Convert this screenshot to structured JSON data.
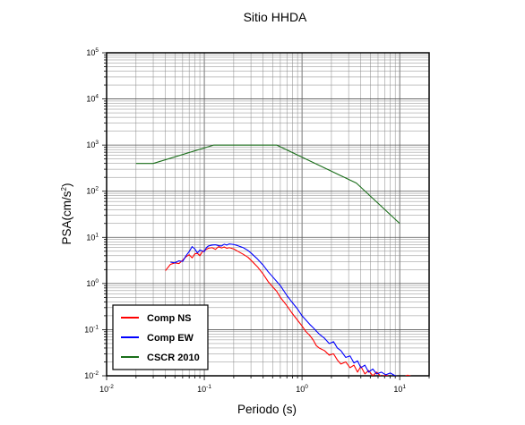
{
  "chart_data": {
    "type": "line",
    "title": "Sitio HHDA",
    "xlabel": "Periodo (s)",
    "ylabel_base": "PSA(cm/s",
    "ylabel_exp": "2",
    "ylabel_close": ")",
    "x_scale": "log",
    "y_scale": "log",
    "xlim": [
      0.01,
      20
    ],
    "ylim": [
      0.01,
      100000
    ],
    "grid": true,
    "legend_position": "bottom-left",
    "x_ticks": [
      {
        "base": "10",
        "exp": "-2",
        "value": 0.01
      },
      {
        "base": "10",
        "exp": "-1",
        "value": 0.1
      },
      {
        "base": "10",
        "exp": "0",
        "value": 1
      },
      {
        "base": "10",
        "exp": "1",
        "value": 10
      }
    ],
    "y_ticks": [
      {
        "base": "10",
        "exp": "-2",
        "value": 0.01
      },
      {
        "base": "10",
        "exp": "-1",
        "value": 0.1
      },
      {
        "base": "10",
        "exp": "0",
        "value": 1
      },
      {
        "base": "10",
        "exp": "1",
        "value": 10
      },
      {
        "base": "10",
        "exp": "2",
        "value": 100
      },
      {
        "base": "10",
        "exp": "3",
        "value": 1000
      },
      {
        "base": "10",
        "exp": "4",
        "value": 10000
      },
      {
        "base": "10",
        "exp": "5",
        "value": 100000
      }
    ],
    "series": [
      {
        "name": "Comp NS",
        "color": "#ff0000",
        "points": [
          [
            0.04,
            1.9
          ],
          [
            0.045,
            2.6
          ],
          [
            0.05,
            2.8
          ],
          [
            0.055,
            2.7
          ],
          [
            0.06,
            3.2
          ],
          [
            0.065,
            3.8
          ],
          [
            0.07,
            4.2
          ],
          [
            0.075,
            3.6
          ],
          [
            0.08,
            4.4
          ],
          [
            0.085,
            4.5
          ],
          [
            0.09,
            4.0
          ],
          [
            0.095,
            4.8
          ],
          [
            0.1,
            5.2
          ],
          [
            0.11,
            5.8
          ],
          [
            0.12,
            6.0
          ],
          [
            0.13,
            5.5
          ],
          [
            0.14,
            6.3
          ],
          [
            0.15,
            5.9
          ],
          [
            0.16,
            6.2
          ],
          [
            0.17,
            5.8
          ],
          [
            0.18,
            6.0
          ],
          [
            0.2,
            5.6
          ],
          [
            0.22,
            5.0
          ],
          [
            0.25,
            4.3
          ],
          [
            0.28,
            3.7
          ],
          [
            0.3,
            3.2
          ],
          [
            0.35,
            2.3
          ],
          [
            0.4,
            1.6
          ],
          [
            0.45,
            1.1
          ],
          [
            0.5,
            0.85
          ],
          [
            0.55,
            0.68
          ],
          [
            0.6,
            0.5
          ],
          [
            0.7,
            0.33
          ],
          [
            0.8,
            0.22
          ],
          [
            0.9,
            0.16
          ],
          [
            1.0,
            0.12
          ],
          [
            1.1,
            0.09
          ],
          [
            1.2,
            0.075
          ],
          [
            1.3,
            0.06
          ],
          [
            1.4,
            0.045
          ],
          [
            1.5,
            0.04
          ],
          [
            1.7,
            0.035
          ],
          [
            1.9,
            0.028
          ],
          [
            2.1,
            0.03
          ],
          [
            2.3,
            0.022
          ],
          [
            2.5,
            0.018
          ],
          [
            2.8,
            0.02
          ],
          [
            3.1,
            0.015
          ],
          [
            3.4,
            0.017
          ],
          [
            3.7,
            0.012
          ],
          [
            4.0,
            0.016
          ],
          [
            4.4,
            0.011
          ],
          [
            4.8,
            0.013
          ],
          [
            5.3,
            0.01
          ],
          [
            5.8,
            0.012
          ],
          [
            6.5,
            0.0095
          ],
          [
            7.2,
            0.0105
          ],
          [
            8.0,
            0.0092
          ],
          [
            9.0,
            0.0098
          ],
          [
            10.0,
            0.0088
          ],
          [
            11.0,
            0.0095
          ],
          [
            12.0,
            0.0103
          ],
          [
            13.0,
            0.0098
          ]
        ]
      },
      {
        "name": "Comp EW",
        "color": "#0000ff",
        "points": [
          [
            0.045,
            2.9
          ],
          [
            0.05,
            2.8
          ],
          [
            0.055,
            3.1
          ],
          [
            0.06,
            3.0
          ],
          [
            0.065,
            4.0
          ],
          [
            0.07,
            4.9
          ],
          [
            0.075,
            6.3
          ],
          [
            0.08,
            5.6
          ],
          [
            0.085,
            4.6
          ],
          [
            0.09,
            5.3
          ],
          [
            0.1,
            4.9
          ],
          [
            0.105,
            6.0
          ],
          [
            0.11,
            6.5
          ],
          [
            0.12,
            6.8
          ],
          [
            0.13,
            6.9
          ],
          [
            0.14,
            6.6
          ],
          [
            0.15,
            6.5
          ],
          [
            0.16,
            7.1
          ],
          [
            0.17,
            6.8
          ],
          [
            0.18,
            7.2
          ],
          [
            0.2,
            7.0
          ],
          [
            0.22,
            6.6
          ],
          [
            0.25,
            6.0
          ],
          [
            0.28,
            5.2
          ],
          [
            0.3,
            4.6
          ],
          [
            0.35,
            3.4
          ],
          [
            0.4,
            2.5
          ],
          [
            0.45,
            1.8
          ],
          [
            0.5,
            1.4
          ],
          [
            0.6,
            0.9
          ],
          [
            0.7,
            0.55
          ],
          [
            0.8,
            0.38
          ],
          [
            0.9,
            0.28
          ],
          [
            1.0,
            0.2
          ],
          [
            1.1,
            0.16
          ],
          [
            1.2,
            0.13
          ],
          [
            1.3,
            0.11
          ],
          [
            1.5,
            0.08
          ],
          [
            1.7,
            0.065
          ],
          [
            1.9,
            0.05
          ],
          [
            2.1,
            0.055
          ],
          [
            2.3,
            0.04
          ],
          [
            2.5,
            0.035
          ],
          [
            2.8,
            0.025
          ],
          [
            3.1,
            0.027
          ],
          [
            3.4,
            0.019
          ],
          [
            3.7,
            0.021
          ],
          [
            4.0,
            0.015
          ],
          [
            4.4,
            0.017
          ],
          [
            4.8,
            0.012
          ],
          [
            5.3,
            0.014
          ],
          [
            5.8,
            0.011
          ],
          [
            6.5,
            0.012
          ],
          [
            7.2,
            0.0105
          ],
          [
            8.0,
            0.0115
          ],
          [
            9.0,
            0.01
          ],
          [
            10.0,
            0.0095
          ]
        ]
      },
      {
        "name": "CSCR 2010",
        "color": "#1a6e1a",
        "points": [
          [
            0.02,
            400
          ],
          [
            0.03,
            400
          ],
          [
            0.125,
            1000
          ],
          [
            0.55,
            1000
          ],
          [
            3.6,
            150
          ],
          [
            10.0,
            20
          ]
        ]
      }
    ]
  }
}
